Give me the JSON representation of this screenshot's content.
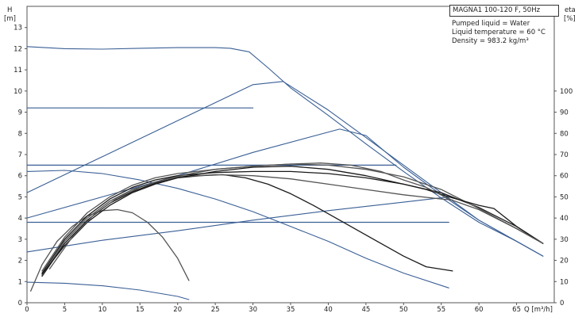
{
  "chart_data": {
    "type": "line",
    "title": "MAGNA1 100-120 F, 50Hz",
    "annotations": [
      "Pumped liquid = Water",
      "Liquid temperature = 60 °C",
      "Density = 983.2 kg/m³"
    ],
    "xlabel": "Q [m³/h]",
    "ylabel_left": {
      "line1": "H",
      "line2": "[m]"
    },
    "ylabel_right": {
      "line1": "eta",
      "line2": "[%]"
    },
    "xlim": [
      0,
      70
    ],
    "ylim_left": [
      0,
      14
    ],
    "ylim_right": [
      0,
      140
    ],
    "x_ticks": [
      0,
      5,
      10,
      15,
      20,
      25,
      30,
      35,
      40,
      45,
      50,
      55,
      60,
      65
    ],
    "y_left_ticks": [
      0,
      1,
      2,
      3,
      4,
      5,
      6,
      7,
      8,
      9,
      10,
      11,
      12,
      13
    ],
    "y_right_ticks": [
      0,
      10,
      20,
      30,
      40,
      50,
      60,
      70,
      80,
      90,
      100
    ],
    "grid": false,
    "series": [
      {
        "group": "head_blue",
        "x": [
          0,
          5,
          10,
          15,
          20,
          25,
          27,
          29.5,
          32,
          35,
          40,
          45,
          50,
          55,
          60,
          65,
          68.5
        ],
        "y": [
          12.1,
          12.0,
          11.98,
          12.02,
          12.05,
          12.05,
          12.02,
          11.85,
          11.1,
          10.15,
          8.85,
          7.5,
          6.2,
          4.95,
          3.8,
          2.9,
          2.2
        ]
      },
      {
        "group": "head_blue",
        "x": [
          0,
          10,
          20,
          30,
          34,
          40,
          45,
          50,
          55,
          60,
          65,
          68.5
        ],
        "y": [
          5.2,
          6.9,
          8.6,
          10.3,
          10.45,
          9.1,
          7.8,
          6.5,
          5.2,
          3.9,
          2.9,
          2.2
        ]
      },
      {
        "group": "head_blue",
        "x": [
          0,
          10,
          20,
          30,
          41.5,
          45,
          50,
          55,
          60,
          65,
          68.5
        ],
        "y": [
          4.0,
          5.0,
          6.0,
          7.1,
          8.2,
          7.9,
          6.4,
          5.1,
          3.9,
          2.9,
          2.2
        ]
      },
      {
        "group": "head_blue",
        "x": [
          0,
          10,
          20,
          30,
          40,
          50,
          56
        ],
        "y": [
          2.4,
          2.95,
          3.4,
          3.9,
          4.35,
          4.75,
          5.0
        ]
      },
      {
        "group": "head_blue",
        "x": [
          0,
          5,
          10,
          15,
          20,
          25,
          30,
          35,
          40,
          45,
          50,
          56
        ],
        "y": [
          6.2,
          6.25,
          6.1,
          5.8,
          5.4,
          4.9,
          4.3,
          3.6,
          2.9,
          2.1,
          1.4,
          0.7
        ]
      },
      {
        "group": "head_blue",
        "x": [
          0,
          5,
          10,
          15,
          20,
          21.5
        ],
        "y": [
          0.97,
          0.92,
          0.8,
          0.6,
          0.3,
          0.15
        ]
      },
      {
        "group": "limit_blue",
        "x": [
          0,
          30
        ],
        "y": [
          9.2,
          9.2
        ]
      },
      {
        "group": "limit_blue",
        "x": [
          0,
          49
        ],
        "y": [
          6.5,
          6.5
        ]
      },
      {
        "group": "limit_blue",
        "x": [
          0,
          56
        ],
        "y": [
          3.8,
          3.8
        ]
      },
      {
        "group": "eta_black",
        "x": [
          0.5,
          2,
          4,
          6,
          8,
          10,
          12,
          14,
          16,
          18,
          20,
          21.5
        ],
        "y": [
          0.55,
          1.8,
          2.9,
          3.6,
          4.1,
          4.35,
          4.4,
          4.25,
          3.8,
          3.1,
          2.1,
          1.05
        ]
      },
      {
        "group": "eta_black",
        "x": [
          2,
          5,
          8,
          11,
          14,
          17,
          20,
          23,
          26,
          29,
          32,
          35,
          38,
          41,
          44,
          47,
          50,
          53,
          56.5
        ],
        "y": [
          1.25,
          2.8,
          3.9,
          4.7,
          5.25,
          5.65,
          5.9,
          6.0,
          6.05,
          5.9,
          5.6,
          5.15,
          4.6,
          4.0,
          3.4,
          2.8,
          2.2,
          1.7,
          1.5
        ]
      },
      {
        "group": "eta_black",
        "x": [
          2,
          5,
          8,
          11,
          14,
          17,
          20,
          25,
          30,
          35,
          40,
          45,
          50,
          55,
          56.5
        ],
        "y": [
          1.3,
          2.9,
          4.0,
          4.8,
          5.35,
          5.7,
          5.95,
          6.05,
          6.0,
          5.85,
          5.6,
          5.35,
          5.1,
          4.9,
          4.85
        ]
      },
      {
        "group": "eta_black",
        "x": [
          2,
          5,
          8,
          11,
          14,
          17,
          20,
          25,
          30,
          35,
          40,
          45,
          50,
          55,
          60,
          65,
          68.5
        ],
        "y": [
          1.4,
          3.0,
          4.1,
          4.9,
          5.45,
          5.8,
          6.0,
          6.15,
          6.2,
          6.2,
          6.1,
          5.9,
          5.6,
          5.2,
          4.5,
          3.6,
          2.8
        ]
      },
      {
        "group": "eta_black",
        "x": [
          2,
          5,
          8,
          11,
          14,
          17,
          20,
          25,
          30,
          35,
          40,
          45,
          50,
          55,
          60,
          65,
          68.5
        ],
        "y": [
          1.5,
          3.1,
          4.25,
          5.0,
          5.55,
          5.9,
          6.1,
          6.3,
          6.45,
          6.55,
          6.5,
          6.3,
          5.95,
          5.35,
          4.45,
          3.5,
          2.8
        ]
      },
      {
        "group": "eta_black",
        "x": [
          2,
          5,
          8,
          11,
          14,
          17,
          20,
          25,
          30,
          35,
          40,
          45,
          50,
          53,
          56,
          60,
          62,
          65,
          68.5
        ],
        "y": [
          1.35,
          2.7,
          3.8,
          4.6,
          5.2,
          5.6,
          5.9,
          6.2,
          6.4,
          6.45,
          6.3,
          6.0,
          5.6,
          5.35,
          5.0,
          4.6,
          4.45,
          3.6,
          2.8
        ]
      },
      {
        "group": "eta_black",
        "x": [
          3,
          6,
          9,
          12,
          15,
          18,
          21,
          25,
          30,
          35,
          39,
          43,
          47,
          50,
          53,
          56,
          60,
          65,
          68.5
        ],
        "y": [
          1.6,
          3.1,
          4.2,
          4.95,
          5.45,
          5.8,
          6.05,
          6.3,
          6.45,
          6.55,
          6.6,
          6.5,
          6.2,
          5.8,
          5.45,
          4.9,
          4.4,
          3.5,
          2.8
        ]
      }
    ]
  },
  "style": {
    "blue": "#3a5f95",
    "black": "#1a1a1a",
    "gray": "#555555",
    "axis": "#555555"
  }
}
